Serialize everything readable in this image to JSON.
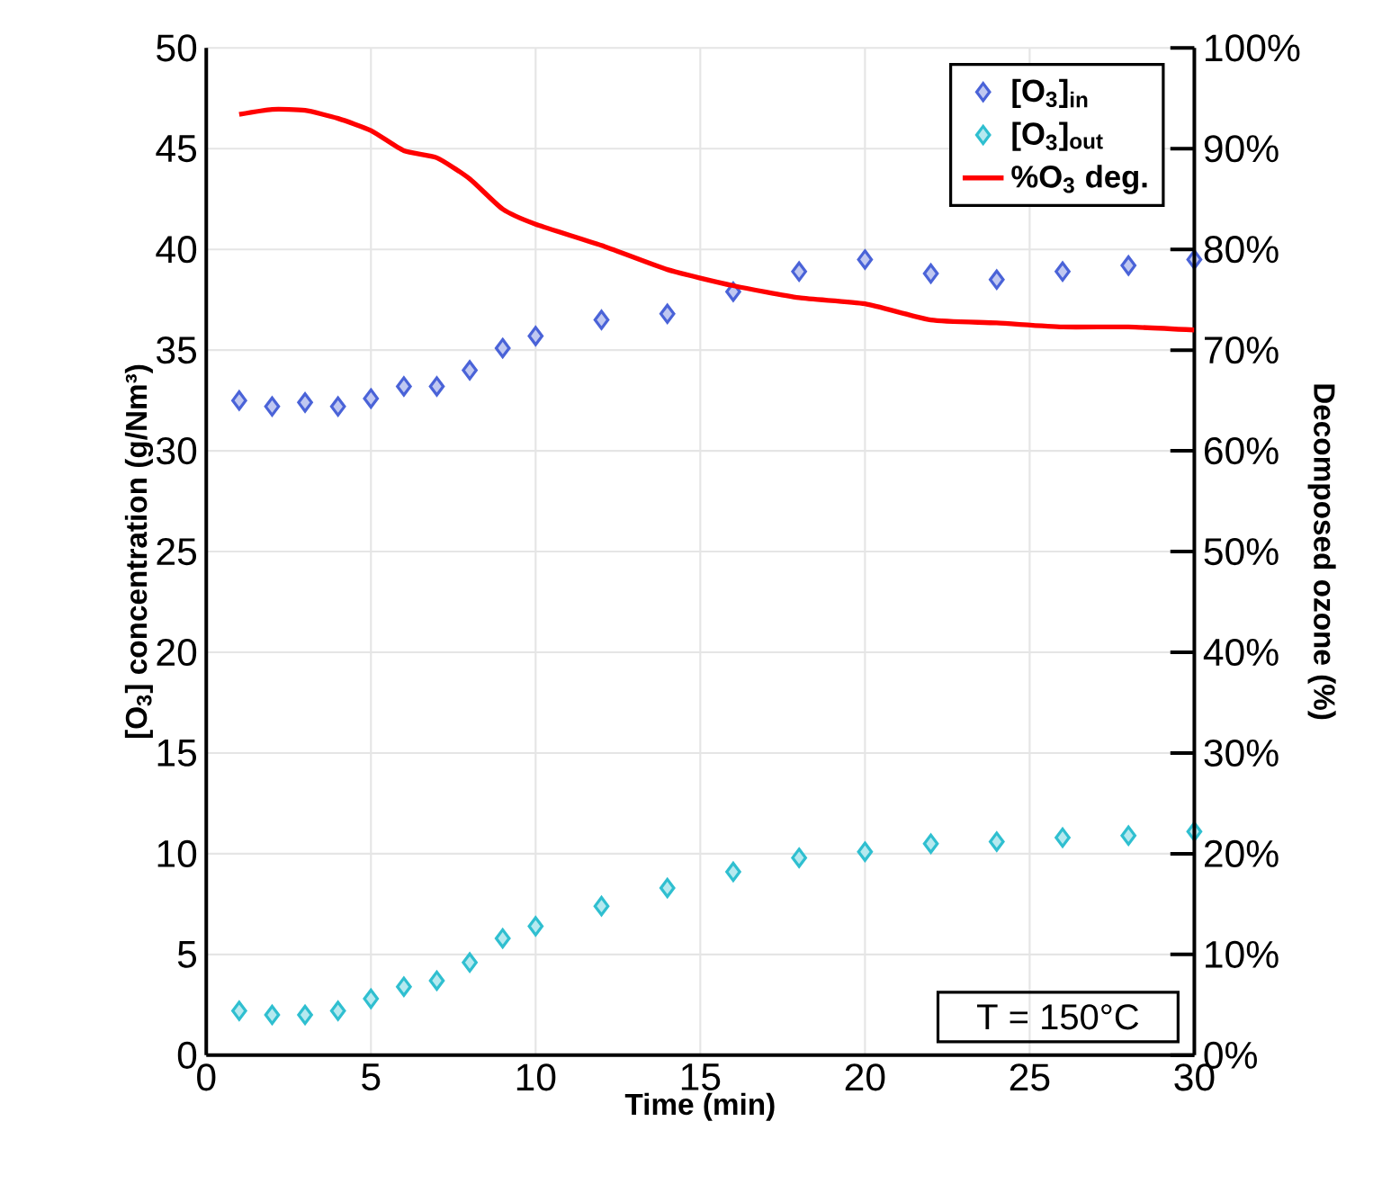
{
  "chart_data": {
    "type": "scatter",
    "xlabel": "Time (min)",
    "ylabel": "[O$_{3}$] concentration (g/Nm³)",
    "y2label": "Decomposed ozone (%)",
    "x": [
      1,
      2,
      3,
      4,
      5,
      6,
      7,
      8,
      9,
      10,
      12,
      14,
      16,
      18,
      20,
      22,
      24,
      26,
      28,
      30
    ],
    "series": [
      {
        "name": "[O$_{3}$]$_{in}$",
        "color": "#4a63d8",
        "values": [
          32.5,
          32.2,
          32.4,
          32.2,
          32.6,
          33.2,
          33.2,
          34.0,
          35.1,
          35.7,
          36.5,
          36.8,
          37.9,
          38.9,
          39.5,
          38.8,
          38.5,
          38.9,
          39.2,
          39.5
        ]
      },
      {
        "name": "[O$_{3}$]$_{out}$",
        "color": "#2fbfd0",
        "values": [
          2.2,
          2.0,
          2.0,
          2.2,
          2.8,
          3.4,
          3.7,
          4.6,
          5.8,
          6.4,
          7.4,
          8.3,
          9.1,
          9.8,
          10.1,
          10.5,
          10.6,
          10.8,
          10.9,
          11.1
        ]
      },
      {
        "name": "%O$_{3}$ deg.",
        "type": "line",
        "axis": "y2",
        "color": "#ff0000",
        "marker": "none",
        "values": [
          93.4,
          93.9,
          93.8,
          93.0,
          91.8,
          89.8,
          89.1,
          87.0,
          84.0,
          82.5,
          80.4,
          78.0,
          76.4,
          75.2,
          74.6,
          73.0,
          72.7,
          72.3,
          72.3,
          72.0
        ]
      }
    ],
    "xlim": [
      0,
      30
    ],
    "xticks": [
      0,
      5,
      10,
      15,
      20,
      25,
      30
    ],
    "ylim": [
      0,
      50
    ],
    "yticks": [
      0,
      5,
      10,
      15,
      20,
      25,
      30,
      35,
      40,
      45,
      50
    ],
    "y2lim": [
      0,
      100
    ],
    "y2ticks": [
      {
        "value": 0,
        "label": "0%"
      },
      {
        "value": 10,
        "label": "10%"
      },
      {
        "value": 20,
        "label": "20%"
      },
      {
        "value": 30,
        "label": "30%"
      },
      {
        "value": 40,
        "label": "40%"
      },
      {
        "value": 50,
        "label": "50%"
      },
      {
        "value": 60,
        "label": "60%"
      },
      {
        "value": 70,
        "label": "70%"
      },
      {
        "value": 80,
        "label": "80%"
      },
      {
        "value": 90,
        "label": "90%"
      },
      {
        "value": 100,
        "label": "100%"
      }
    ],
    "grid": true,
    "legend": "top right",
    "marker": "diamond",
    "line_style": "solid",
    "annotations": [
      "T = 150°C"
    ]
  }
}
